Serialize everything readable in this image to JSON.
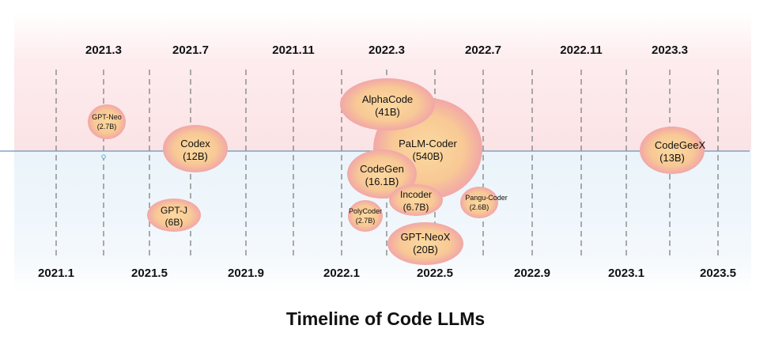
{
  "title": "Timeline of Code LLMs",
  "timeline": {
    "top_labels": [
      "2021.3",
      "2021.7",
      "2021.11",
      "2022.3",
      "2022.7",
      "2022.11",
      "2023.3"
    ],
    "bottom_labels": [
      "2021.1",
      "2021.5",
      "2021.9",
      "2022.1",
      "2022.5",
      "2022.9",
      "2023.1",
      "2023.5"
    ]
  },
  "models": [
    {
      "name": "GPT-Neo",
      "size": "(2.7B)"
    },
    {
      "name": "Codex",
      "size": "(12B)"
    },
    {
      "name": "GPT-J",
      "size": "(6B)"
    },
    {
      "name": "PaLM-Coder",
      "size": "(540B)"
    },
    {
      "name": "AlphaCode",
      "size": "(41B)"
    },
    {
      "name": "CodeGen",
      "size": "(16.1B)"
    },
    {
      "name": "Incoder",
      "size": "(6.7B)"
    },
    {
      "name": "PolyCoder",
      "size": "(2.7B)"
    },
    {
      "name": "GPT-NeoX",
      "size": "(20B)"
    },
    {
      "name": "Pangu-Coder",
      "size": "(2.6B)"
    },
    {
      "name": "CodeGeeX",
      "size": "(13B)"
    }
  ],
  "colors": {
    "bubble_fill": "#f7cf96",
    "bubble_edge": "#f2a7a7",
    "axis_line": "#6b93b8",
    "dashed_line": "#909090",
    "band_top": "#fde8ea",
    "band_bottom": "#eef6fb"
  }
}
